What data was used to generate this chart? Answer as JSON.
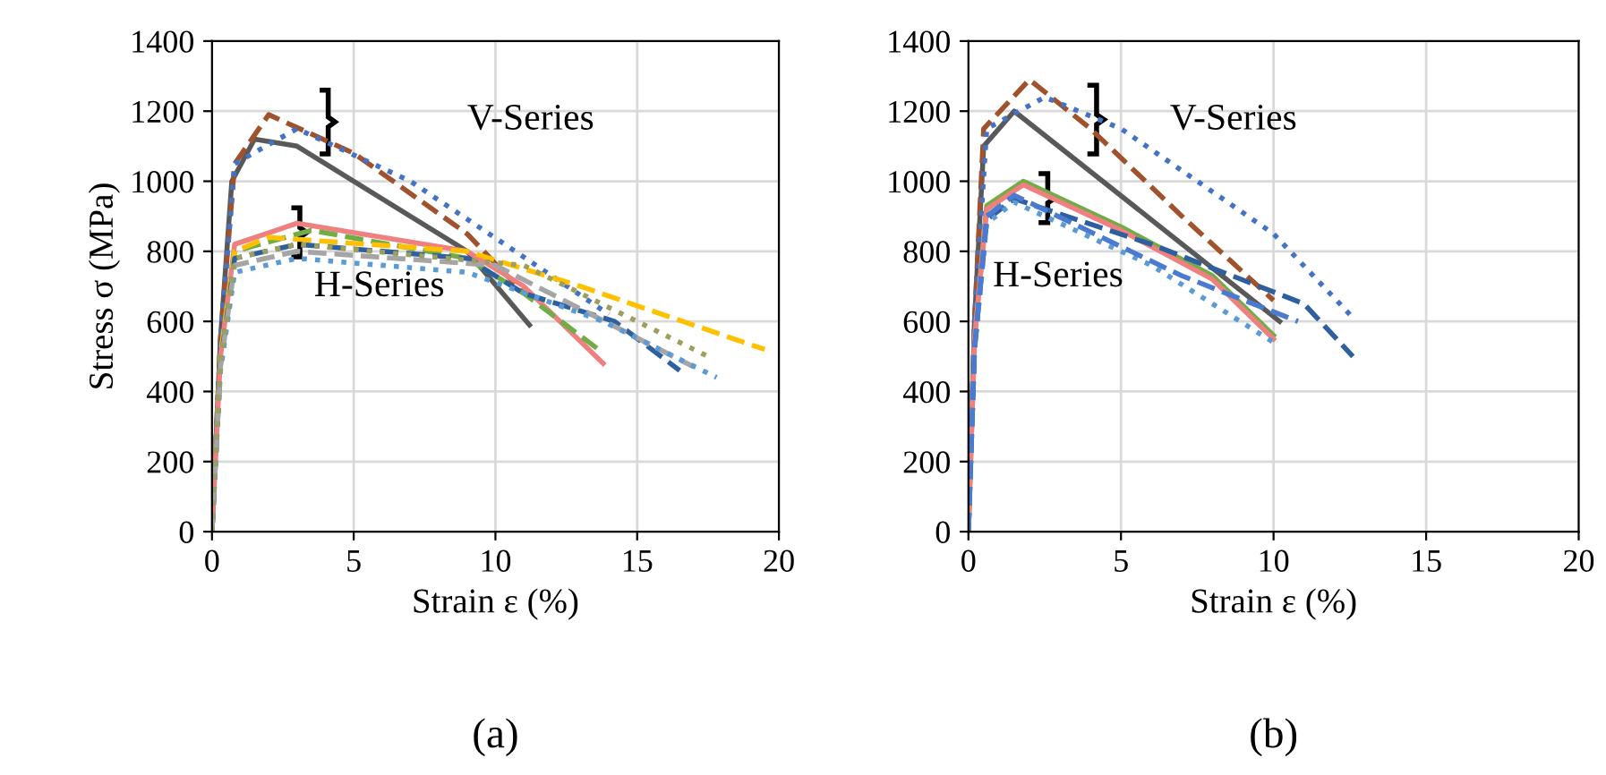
{
  "chart_data": [
    {
      "type": "line",
      "xlabel": "Strain ε (%)",
      "ylabel": "Stress σ (MPa)",
      "xlim": [
        0,
        20
      ],
      "ylim": [
        0,
        1400
      ],
      "xticks": [
        0,
        5,
        10,
        15,
        20
      ],
      "yticks": [
        0,
        200,
        400,
        600,
        800,
        1000,
        1200,
        1400
      ],
      "grid": true,
      "legend": false,
      "marker": "none",
      "annotations": [
        "V-Series",
        "H-Series",
        "(a)"
      ],
      "series": [
        {
          "color": "#595959",
          "line_style": "solid",
          "x": [
            0,
            0.3,
            0.7,
            1.5,
            3,
            6,
            9,
            11.2
          ],
          "values": [
            0,
            550,
            1000,
            1120,
            1100,
            950,
            800,
            590
          ]
        },
        {
          "color": "#a0522d",
          "line_style": "dashed",
          "x": [
            0,
            0.3,
            0.8,
            2,
            5,
            9,
            11
          ],
          "values": [
            0,
            550,
            1050,
            1190,
            1080,
            850,
            680
          ]
        },
        {
          "color": "#4472c4",
          "line_style": "dotted",
          "x": [
            0,
            0.3,
            0.8,
            3,
            7,
            10.7,
            14
          ],
          "values": [
            0,
            550,
            1050,
            1150,
            1000,
            800,
            620
          ]
        },
        {
          "color": "#f08080",
          "line_style": "solid",
          "x": [
            0,
            0.3,
            0.8,
            3,
            9,
            11,
            13.8
          ],
          "values": [
            0,
            500,
            820,
            880,
            800,
            700,
            480
          ]
        },
        {
          "color": "#70ad47",
          "line_style": "dashed",
          "x": [
            0,
            0.3,
            0.8,
            3.5,
            9,
            11,
            13.8
          ],
          "values": [
            0,
            500,
            800,
            860,
            780,
            680,
            510
          ]
        },
        {
          "color": "#ffc000",
          "line_style": "dashed",
          "x": [
            0,
            0.3,
            0.8,
            2,
            9,
            13,
            19.5
          ],
          "values": [
            0,
            500,
            800,
            840,
            800,
            700,
            520
          ]
        },
        {
          "color": "#2e5f9e",
          "line_style": "dashed",
          "x": [
            0,
            0.3,
            0.8,
            3,
            9,
            11,
            14.2,
            16.5
          ],
          "values": [
            0,
            480,
            780,
            820,
            780,
            680,
            600,
            460
          ]
        },
        {
          "color": "#a5a5a5",
          "line_style": "dashed",
          "x": [
            0,
            0.3,
            0.8,
            3,
            10,
            17
          ],
          "values": [
            0,
            470,
            760,
            800,
            760,
            470
          ]
        },
        {
          "color": "#5b9bd5",
          "line_style": "dotted",
          "x": [
            0,
            0.3,
            0.8,
            3,
            9,
            13.8,
            17.8
          ],
          "values": [
            0,
            460,
            740,
            780,
            740,
            600,
            440
          ]
        },
        {
          "color": "#9e9e5e",
          "line_style": "dotted",
          "x": [
            0,
            0.3,
            0.8,
            3,
            11,
            17.5
          ],
          "values": [
            0,
            480,
            780,
            820,
            760,
            500
          ]
        }
      ]
    },
    {
      "type": "line",
      "xlabel": "Strain ε (%)",
      "xlim": [
        0,
        20
      ],
      "ylim": [
        0,
        1400
      ],
      "xticks": [
        0,
        5,
        10,
        15,
        20
      ],
      "yticks": [
        0,
        200,
        400,
        600,
        800,
        1000,
        1200,
        1400
      ],
      "grid": true,
      "legend": false,
      "marker": "none",
      "annotations": [
        "V-Series",
        "H-Series",
        "(b)"
      ],
      "series": [
        {
          "color": "#595959",
          "line_style": "solid",
          "x": [
            0,
            0.2,
            0.5,
            1.5,
            10.2
          ],
          "values": [
            0,
            600,
            1100,
            1200,
            600
          ]
        },
        {
          "color": "#a0522d",
          "line_style": "dashed",
          "x": [
            0,
            0.2,
            0.5,
            2,
            4,
            7,
            10
          ],
          "values": [
            0,
            600,
            1150,
            1290,
            1150,
            900,
            660
          ]
        },
        {
          "color": "#4472c4",
          "line_style": "dotted",
          "x": [
            0,
            0.2,
            0.6,
            2.5,
            5,
            10,
            12.5
          ],
          "values": [
            0,
            600,
            1150,
            1240,
            1150,
            850,
            620
          ]
        },
        {
          "color": "#70ad47",
          "line_style": "solid",
          "x": [
            0,
            0.2,
            0.6,
            1.8,
            5,
            8,
            10
          ],
          "values": [
            0,
            550,
            930,
            1000,
            870,
            730,
            560
          ]
        },
        {
          "color": "#f08080",
          "line_style": "solid",
          "x": [
            0,
            0.2,
            0.6,
            1.8,
            5,
            8,
            10
          ],
          "values": [
            0,
            550,
            920,
            990,
            860,
            720,
            550
          ]
        },
        {
          "color": "#2e5f9e",
          "line_style": "dashed",
          "x": [
            0,
            0.2,
            0.6,
            1.5,
            6,
            11,
            12.6
          ],
          "values": [
            0,
            520,
            890,
            950,
            820,
            650,
            500
          ]
        },
        {
          "color": "#5b9bd5",
          "line_style": "dotted",
          "x": [
            0,
            0.2,
            0.6,
            1.5,
            6,
            10
          ],
          "values": [
            0,
            520,
            880,
            940,
            760,
            540
          ]
        },
        {
          "color": "#4a7bd0",
          "line_style": "dashed",
          "x": [
            0,
            0.2,
            0.6,
            1.5,
            7,
            10.8
          ],
          "values": [
            0,
            520,
            900,
            960,
            730,
            600
          ]
        }
      ]
    }
  ]
}
